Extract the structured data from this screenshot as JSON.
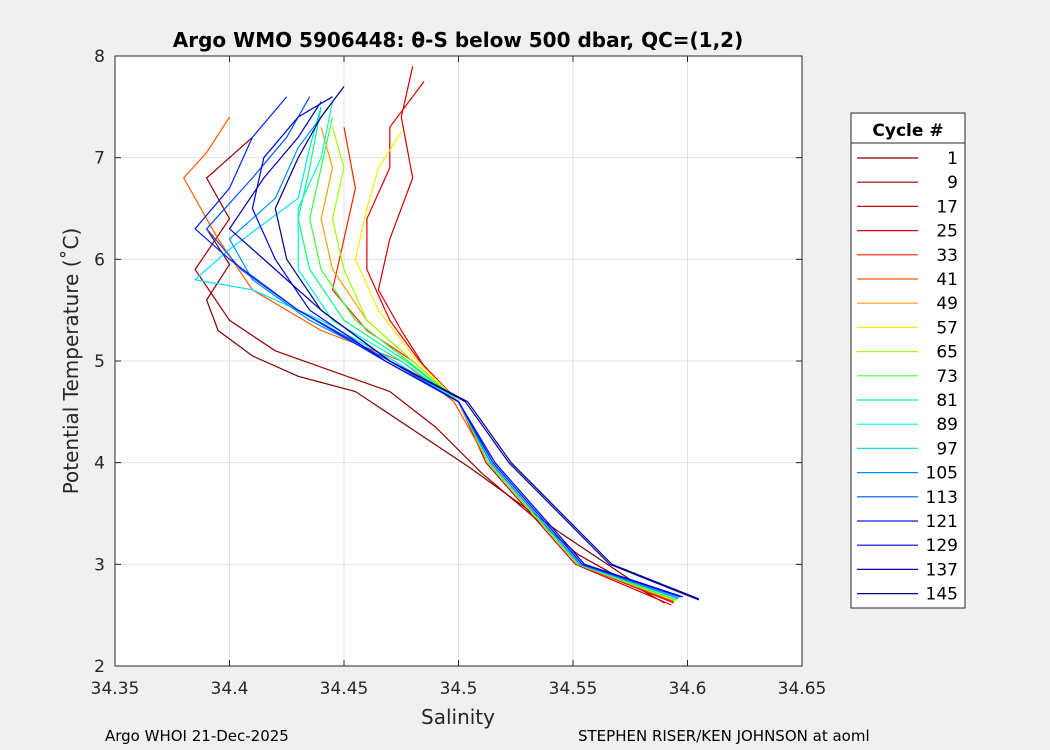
{
  "chart_data": {
    "type": "line",
    "title": "Argo WMO 5906448: θ-S below 500 dbar,  QC=(1,2)",
    "xlabel": "Salinity",
    "ylabel": "Potential Temperature (˚C)",
    "xlim": [
      34.35,
      34.65
    ],
    "ylim": [
      2,
      8
    ],
    "xticks": [
      "34.35",
      "34.4",
      "34.45",
      "34.5",
      "34.55",
      "34.6",
      "34.65"
    ],
    "yticks": [
      "2",
      "3",
      "4",
      "5",
      "6",
      "7",
      "8"
    ],
    "grid": true,
    "legend_title": "Cycle #",
    "legend_position": "right-outside",
    "series": [
      {
        "name": "1",
        "color": "#800000",
        "points": [
          [
            34.575,
            2.85
          ],
          [
            34.545,
            3.3
          ],
          [
            34.505,
            3.95
          ],
          [
            34.475,
            4.4
          ],
          [
            34.455,
            4.7
          ],
          [
            34.43,
            4.85
          ],
          [
            34.41,
            5.05
          ],
          [
            34.395,
            5.3
          ],
          [
            34.39,
            5.6
          ],
          [
            34.4,
            5.95
          ],
          [
            34.39,
            6.3
          ]
        ]
      },
      {
        "name": "9",
        "color": "#9a0000",
        "points": [
          [
            34.59,
            2.62
          ],
          [
            34.552,
            3.1
          ],
          [
            34.51,
            3.9
          ],
          [
            34.49,
            4.35
          ],
          [
            34.47,
            4.7
          ],
          [
            34.445,
            4.9
          ],
          [
            34.42,
            5.1
          ],
          [
            34.4,
            5.4
          ],
          [
            34.385,
            5.9
          ],
          [
            34.4,
            6.4
          ],
          [
            34.39,
            6.8
          ],
          [
            34.41,
            7.2
          ]
        ]
      },
      {
        "name": "17",
        "color": "#d00000",
        "points": [
          [
            34.593,
            2.6
          ],
          [
            34.551,
            3.0
          ],
          [
            34.512,
            4.0
          ],
          [
            34.5,
            4.6
          ],
          [
            34.485,
            4.95
          ],
          [
            34.475,
            5.3
          ],
          [
            34.465,
            5.7
          ],
          [
            34.47,
            6.2
          ],
          [
            34.48,
            6.8
          ],
          [
            34.475,
            7.4
          ],
          [
            34.48,
            7.9
          ]
        ]
      },
      {
        "name": "25",
        "color": "#e60000",
        "points": [
          [
            34.594,
            2.62
          ],
          [
            34.552,
            3.0
          ],
          [
            34.513,
            4.0
          ],
          [
            34.5,
            4.6
          ],
          [
            34.483,
            5.0
          ],
          [
            34.47,
            5.4
          ],
          [
            34.46,
            5.9
          ],
          [
            34.46,
            6.4
          ],
          [
            34.47,
            6.9
          ],
          [
            34.47,
            7.3
          ],
          [
            34.485,
            7.75
          ]
        ]
      },
      {
        "name": "33",
        "color": "#ff2000",
        "points": [
          [
            34.594,
            2.63
          ],
          [
            34.552,
            3.0
          ],
          [
            34.513,
            4.0
          ],
          [
            34.5,
            4.6
          ],
          [
            34.48,
            5.0
          ],
          [
            34.46,
            5.3
          ],
          [
            34.445,
            5.7
          ],
          [
            34.45,
            6.2
          ],
          [
            34.455,
            6.7
          ],
          [
            34.45,
            7.3
          ]
        ]
      },
      {
        "name": "41",
        "color": "#ff5a00",
        "points": [
          [
            34.594,
            2.64
          ],
          [
            34.552,
            3.0
          ],
          [
            34.513,
            4.0
          ],
          [
            34.498,
            4.6
          ],
          [
            34.475,
            5.0
          ],
          [
            34.44,
            5.3
          ],
          [
            34.41,
            5.7
          ],
          [
            34.395,
            6.2
          ],
          [
            34.38,
            6.8
          ],
          [
            34.39,
            7.05
          ],
          [
            34.4,
            7.4
          ]
        ]
      },
      {
        "name": "49",
        "color": "#ffa000",
        "points": [
          [
            34.595,
            2.64
          ],
          [
            34.552,
            3.0
          ],
          [
            34.513,
            4.0
          ],
          [
            34.5,
            4.6
          ],
          [
            34.48,
            5.0
          ],
          [
            34.46,
            5.4
          ],
          [
            34.445,
            5.9
          ],
          [
            34.44,
            6.4
          ],
          [
            34.445,
            6.9
          ],
          [
            34.44,
            7.3
          ]
        ]
      },
      {
        "name": "57",
        "color": "#f5f000",
        "points": [
          [
            34.595,
            2.64
          ],
          [
            34.552,
            3.0
          ],
          [
            34.513,
            4.0
          ],
          [
            34.5,
            4.6
          ],
          [
            34.482,
            5.0
          ],
          [
            34.465,
            5.5
          ],
          [
            34.455,
            6.0
          ],
          [
            34.46,
            6.5
          ],
          [
            34.465,
            6.9
          ],
          [
            34.475,
            7.25
          ]
        ]
      },
      {
        "name": "65",
        "color": "#a0ff00",
        "points": [
          [
            34.595,
            2.65
          ],
          [
            34.552,
            3.0
          ],
          [
            34.513,
            4.0
          ],
          [
            34.5,
            4.6
          ],
          [
            34.48,
            5.0
          ],
          [
            34.46,
            5.4
          ],
          [
            34.45,
            5.9
          ],
          [
            34.445,
            6.4
          ],
          [
            34.45,
            6.9
          ],
          [
            34.445,
            7.3
          ]
        ]
      },
      {
        "name": "73",
        "color": "#40ff40",
        "points": [
          [
            34.595,
            2.65
          ],
          [
            34.552,
            3.0
          ],
          [
            34.513,
            4.0
          ],
          [
            34.5,
            4.6
          ],
          [
            34.478,
            5.0
          ],
          [
            34.455,
            5.4
          ],
          [
            34.44,
            5.9
          ],
          [
            34.435,
            6.4
          ],
          [
            34.44,
            6.9
          ],
          [
            34.445,
            7.4
          ]
        ]
      },
      {
        "name": "81",
        "color": "#00ff80",
        "points": [
          [
            34.596,
            2.66
          ],
          [
            34.553,
            3.0
          ],
          [
            34.514,
            4.0
          ],
          [
            34.5,
            4.6
          ],
          [
            34.477,
            5.0
          ],
          [
            34.45,
            5.4
          ],
          [
            34.435,
            5.9
          ],
          [
            34.43,
            6.4
          ],
          [
            34.435,
            6.9
          ],
          [
            34.44,
            7.5
          ]
        ]
      },
      {
        "name": "89",
        "color": "#00ffd0",
        "points": [
          [
            34.596,
            2.66
          ],
          [
            34.553,
            3.0
          ],
          [
            34.514,
            4.0
          ],
          [
            34.5,
            4.6
          ],
          [
            34.475,
            5.0
          ],
          [
            34.445,
            5.4
          ],
          [
            34.43,
            5.9
          ],
          [
            34.43,
            6.5
          ],
          [
            34.44,
            7.0
          ],
          [
            34.445,
            7.55
          ]
        ]
      },
      {
        "name": "97",
        "color": "#00e0ff",
        "points": [
          [
            34.596,
            2.67
          ],
          [
            34.553,
            3.0
          ],
          [
            34.514,
            4.0
          ],
          [
            34.5,
            4.6
          ],
          [
            34.472,
            5.0
          ],
          [
            34.44,
            5.4
          ],
          [
            34.41,
            5.7
          ],
          [
            34.385,
            5.8
          ],
          [
            34.4,
            6.1
          ],
          [
            34.43,
            6.6
          ],
          [
            34.435,
            7.1
          ],
          [
            34.44,
            7.5
          ]
        ]
      },
      {
        "name": "105",
        "color": "#0090ff",
        "points": [
          [
            34.596,
            2.67
          ],
          [
            34.553,
            3.0
          ],
          [
            34.514,
            4.0
          ],
          [
            34.5,
            4.6
          ],
          [
            34.47,
            5.0
          ],
          [
            34.435,
            5.4
          ],
          [
            34.41,
            5.8
          ],
          [
            34.4,
            6.2
          ],
          [
            34.42,
            6.6
          ],
          [
            34.43,
            7.1
          ],
          [
            34.445,
            7.55
          ]
        ]
      },
      {
        "name": "113",
        "color": "#0050ff",
        "points": [
          [
            34.597,
            2.68
          ],
          [
            34.554,
            3.0
          ],
          [
            34.515,
            4.0
          ],
          [
            34.5,
            4.6
          ],
          [
            34.47,
            5.0
          ],
          [
            34.43,
            5.5
          ],
          [
            34.405,
            5.9
          ],
          [
            34.39,
            6.3
          ],
          [
            34.41,
            6.8
          ],
          [
            34.425,
            7.2
          ],
          [
            34.435,
            7.6
          ]
        ]
      },
      {
        "name": "121",
        "color": "#0020ff",
        "points": [
          [
            34.597,
            2.68
          ],
          [
            34.554,
            3.0
          ],
          [
            34.515,
            4.0
          ],
          [
            34.5,
            4.6
          ],
          [
            34.468,
            5.0
          ],
          [
            34.43,
            5.5
          ],
          [
            34.4,
            6.0
          ],
          [
            34.385,
            6.3
          ],
          [
            34.4,
            6.7
          ],
          [
            34.41,
            7.2
          ],
          [
            34.425,
            7.6
          ]
        ]
      },
      {
        "name": "129",
        "color": "#0000e0",
        "points": [
          [
            34.598,
            2.68
          ],
          [
            34.555,
            3.0
          ],
          [
            34.516,
            4.0
          ],
          [
            34.5,
            4.6
          ],
          [
            34.468,
            5.0
          ],
          [
            34.435,
            5.5
          ],
          [
            34.42,
            6.0
          ],
          [
            34.41,
            6.5
          ],
          [
            34.415,
            7.0
          ],
          [
            34.43,
            7.4
          ],
          [
            34.445,
            7.6
          ]
        ]
      },
      {
        "name": "137",
        "color": "#0000b0",
        "points": [
          [
            34.605,
            2.65
          ],
          [
            34.566,
            3.0
          ],
          [
            34.522,
            4.0
          ],
          [
            34.503,
            4.6
          ],
          [
            34.47,
            5.0
          ],
          [
            34.44,
            5.5
          ],
          [
            34.42,
            5.9
          ],
          [
            34.4,
            6.3
          ],
          [
            34.415,
            6.8
          ],
          [
            34.43,
            7.2
          ],
          [
            34.44,
            7.55
          ]
        ]
      },
      {
        "name": "145",
        "color": "#000080",
        "points": [
          [
            34.605,
            2.66
          ],
          [
            34.567,
            3.0
          ],
          [
            34.523,
            4.0
          ],
          [
            34.504,
            4.6
          ],
          [
            34.47,
            5.0
          ],
          [
            34.44,
            5.5
          ],
          [
            34.425,
            6.0
          ],
          [
            34.42,
            6.5
          ],
          [
            34.43,
            7.0
          ],
          [
            34.44,
            7.4
          ],
          [
            34.45,
            7.7
          ]
        ]
      }
    ]
  },
  "footer": {
    "left": "Argo WHOI 21-Dec-2025",
    "right": "STEPHEN RISER/KEN JOHNSON at aoml"
  }
}
